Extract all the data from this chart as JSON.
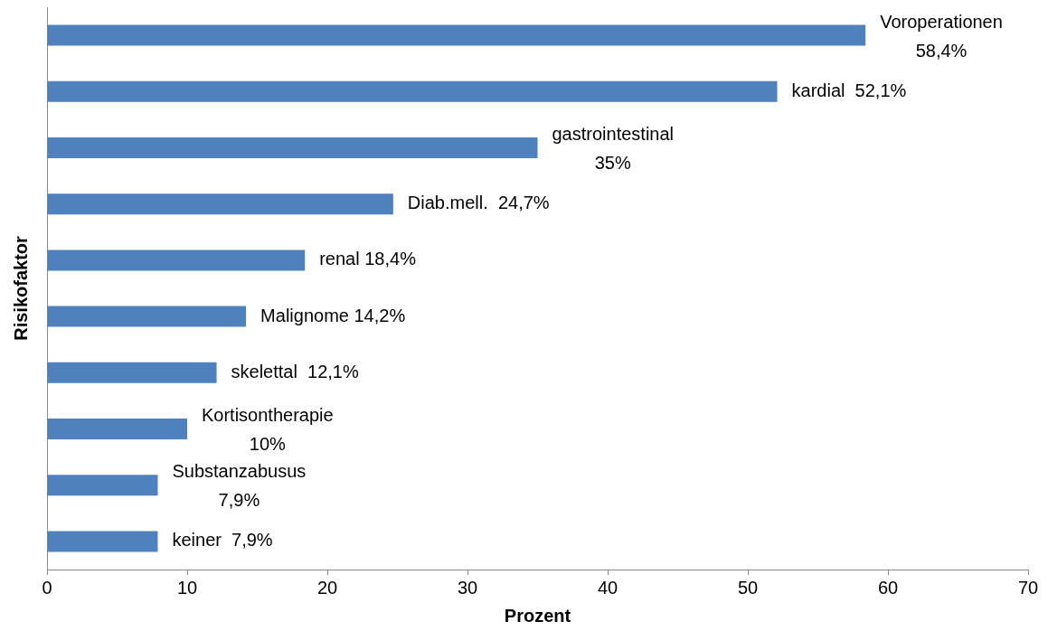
{
  "chart_data": {
    "type": "bar",
    "orientation": "horizontal",
    "xlabel": "Prozent",
    "ylabel": "Risikofaktor",
    "categories": [
      null,
      null,
      null,
      null,
      null,
      null,
      null,
      null,
      null,
      null
    ],
    "values": [
      58.4,
      52.1,
      35,
      24.7,
      18.4,
      14.2,
      12.1,
      10,
      7.9,
      7.9
    ],
    "value_labels": [
      "Voroperationen\n58,4%",
      "kardial  52,1%",
      "gastrointestinal\n35%",
      "Diab.mell.  24,7%",
      "renal 18,4%",
      "Malignome 14,2%",
      "skelettal  12,1%",
      "Kortisontherapie\n10%",
      "Substanzabusus\n7,9%",
      "keiner  7,9%"
    ],
    "color": "#4f81bd",
    "xlim": [
      0,
      70
    ],
    "xticks": [
      0,
      10,
      20,
      30,
      40,
      50,
      60,
      70
    ],
    "tick_labels": "x"
  }
}
